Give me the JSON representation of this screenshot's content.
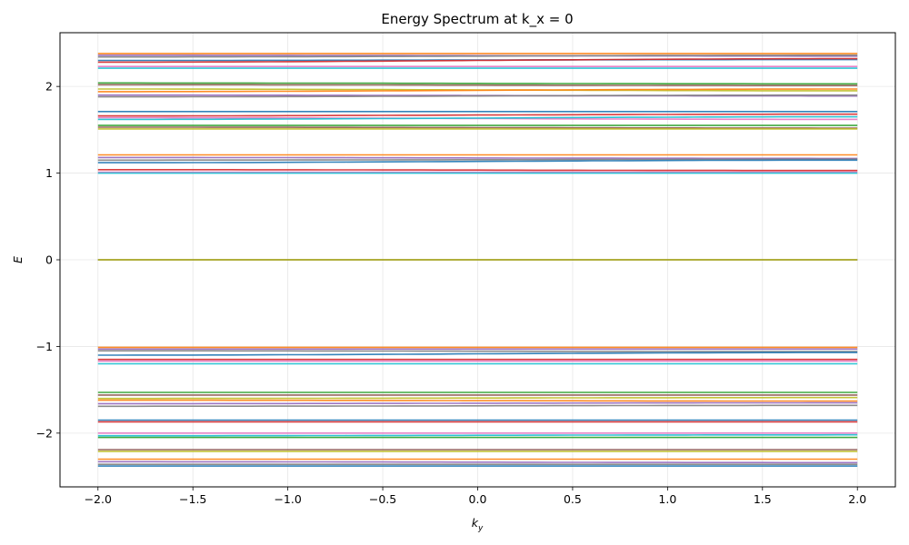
{
  "chart_data": {
    "type": "line",
    "title": "Energy Spectrum at k_x = 0",
    "xlabel_main": "k",
    "xlabel_sub": "y",
    "ylabel": "E",
    "xlim": [
      -2.2,
      2.2
    ],
    "ylim": [
      -2.62,
      2.62
    ],
    "grid": true,
    "x_ticks": [
      -2.0,
      -1.5,
      -1.0,
      -0.5,
      0.0,
      0.5,
      1.0,
      1.5,
      2.0
    ],
    "x_tick_labels": [
      "−2.0",
      "−1.5",
      "−1.0",
      "−0.5",
      "0.0",
      "0.5",
      "1.0",
      "1.5",
      "2.0"
    ],
    "y_ticks": [
      -2,
      -1,
      0,
      1,
      2
    ],
    "y_tick_labels": [
      "−2",
      "−1",
      "0",
      "1",
      "2"
    ],
    "x_range": [
      -2.0,
      2.0
    ],
    "palette": [
      "#1f77b4",
      "#ff7f0e",
      "#2ca02c",
      "#d62728",
      "#9467bd",
      "#8c564b",
      "#e377c2",
      "#7f7f7f",
      "#bcbd22",
      "#17becf"
    ],
    "bands": [
      {
        "y_left": 2.38,
        "y_right": 2.38
      },
      {
        "y_left": 2.36,
        "y_right": 2.35
      },
      {
        "y_left": 2.34,
        "y_right": 2.36
      },
      {
        "y_left": 2.3,
        "y_right": 2.31
      },
      {
        "y_left": 2.28,
        "y_right": 2.32
      },
      {
        "y_left": 2.23,
        "y_right": 2.23
      },
      {
        "y_left": 2.21,
        "y_right": 2.21
      },
      {
        "y_left": 2.04,
        "y_right": 2.03
      },
      {
        "y_left": 2.02,
        "y_right": 2.01
      },
      {
        "y_left": 1.97,
        "y_right": 1.95
      },
      {
        "y_left": 1.94,
        "y_right": 1.97
      },
      {
        "y_left": 1.9,
        "y_right": 1.89
      },
      {
        "y_left": 1.88,
        "y_right": 1.9
      },
      {
        "y_left": 1.71,
        "y_right": 1.71
      },
      {
        "y_left": 1.66,
        "y_right": 1.68
      },
      {
        "y_left": 1.64,
        "y_right": 1.62
      },
      {
        "y_left": 1.62,
        "y_right": 1.65
      },
      {
        "y_left": 1.55,
        "y_right": 1.55
      },
      {
        "y_left": 1.53,
        "y_right": 1.52
      },
      {
        "y_left": 1.51,
        "y_right": 1.51
      },
      {
        "y_left": 1.21,
        "y_right": 1.21
      },
      {
        "y_left": 1.18,
        "y_right": 1.17
      },
      {
        "y_left": 1.15,
        "y_right": 1.16
      },
      {
        "y_left": 1.12,
        "y_right": 1.15
      },
      {
        "y_left": 1.04,
        "y_right": 1.03
      },
      {
        "y_left": 1.01,
        "y_right": 1.01
      },
      {
        "y_left": 1.0,
        "y_right": 1.0
      },
      {
        "y_left": 0.0,
        "y_right": 0.0
      },
      {
        "y_left": 0.0,
        "y_right": 0.0
      },
      {
        "y_left": 0.0,
        "y_right": 0.0
      },
      {
        "y_left": -1.01,
        "y_right": -1.01
      },
      {
        "y_left": -1.03,
        "y_right": -1.03
      },
      {
        "y_left": -1.05,
        "y_right": -1.06
      },
      {
        "y_left": -1.1,
        "y_right": -1.07
      },
      {
        "y_left": -1.15,
        "y_right": -1.15
      },
      {
        "y_left": -1.17,
        "y_right": -1.17
      },
      {
        "y_left": -1.2,
        "y_right": -1.2
      },
      {
        "y_left": -1.53,
        "y_right": -1.53
      },
      {
        "y_left": -1.56,
        "y_right": -1.56
      },
      {
        "y_left": -1.6,
        "y_right": -1.59
      },
      {
        "y_left": -1.62,
        "y_right": -1.63
      },
      {
        "y_left": -1.66,
        "y_right": -1.65
      },
      {
        "y_left": -1.69,
        "y_right": -1.68
      },
      {
        "y_left": -1.85,
        "y_right": -1.85
      },
      {
        "y_left": -1.87,
        "y_right": -1.87
      },
      {
        "y_left": -2.0,
        "y_right": -2.0
      },
      {
        "y_left": -2.03,
        "y_right": -2.02
      },
      {
        "y_left": -2.05,
        "y_right": -2.05
      },
      {
        "y_left": -2.19,
        "y_right": -2.19
      },
      {
        "y_left": -2.21,
        "y_right": -2.21
      },
      {
        "y_left": -2.3,
        "y_right": -2.3
      },
      {
        "y_left": -2.33,
        "y_right": -2.34
      },
      {
        "y_left": -2.36,
        "y_right": -2.36
      },
      {
        "y_left": -2.38,
        "y_right": -2.38
      }
    ]
  }
}
